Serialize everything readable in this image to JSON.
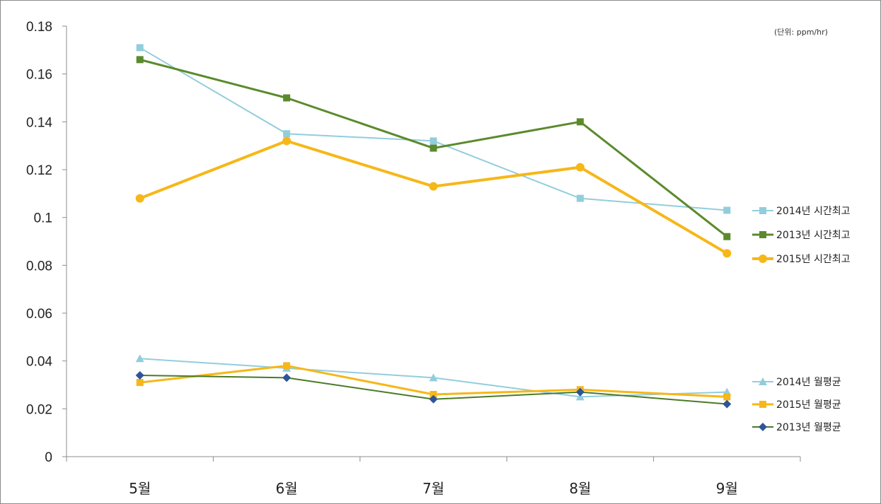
{
  "chart_data": {
    "type": "line",
    "title": "",
    "xlabel": "",
    "ylabel": "",
    "unit_note": "(단위: ppm/hr)",
    "categories": [
      "5월",
      "6월",
      "7월",
      "8월",
      "9월"
    ],
    "ylim": [
      0,
      0.18
    ],
    "yticks": [
      0,
      0.02,
      0.04,
      0.06,
      0.08,
      0.1,
      0.12,
      0.14,
      0.16,
      0.18
    ],
    "ytick_labels": [
      "0",
      "0.02",
      "0.04",
      "0.06",
      "0.08",
      "0.1",
      "0.12",
      "0.14",
      "0.16",
      "0.18"
    ],
    "grid": false,
    "legend_placement": "right",
    "series": [
      {
        "name": "2014년 시간최고",
        "values": [
          0.171,
          0.135,
          0.132,
          0.108,
          0.103
        ],
        "color": "#92cddc",
        "marker": "square",
        "width": 2,
        "legend_group": "top"
      },
      {
        "name": "2013년 시간최고",
        "values": [
          0.166,
          0.15,
          0.129,
          0.14,
          0.092
        ],
        "color": "#5b8a2c",
        "marker": "square",
        "width": 3,
        "legend_group": "top"
      },
      {
        "name": "2015년 시간최고",
        "values": [
          0.108,
          0.132,
          0.113,
          0.121,
          0.085
        ],
        "color": "#f6b719",
        "marker": "circle",
        "width": 4,
        "legend_group": "top"
      },
      {
        "name": "2014년 월평균",
        "values": [
          0.041,
          0.037,
          0.033,
          0.025,
          0.027
        ],
        "color": "#92cddc",
        "marker": "triangle",
        "width": 2,
        "legend_group": "bottom"
      },
      {
        "name": "2015년 월평균",
        "values": [
          0.031,
          0.038,
          0.026,
          0.028,
          0.025
        ],
        "color": "#f6b719",
        "marker": "square",
        "width": 3,
        "legend_group": "bottom"
      },
      {
        "name": "2013년 월평균",
        "values": [
          0.034,
          0.033,
          0.024,
          0.027,
          0.022
        ],
        "color": "#4a7a28",
        "marker": "diamond",
        "marker_color": "#2f5597",
        "width": 2,
        "legend_group": "bottom"
      }
    ]
  }
}
